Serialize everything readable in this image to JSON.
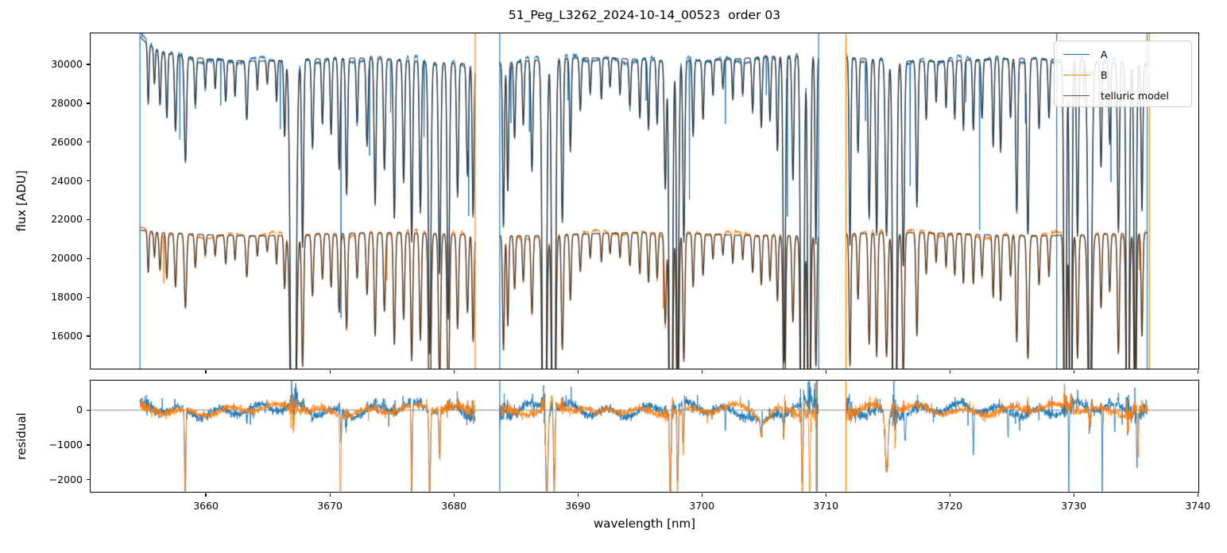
{
  "chart_data": {
    "type": "line",
    "title": "51_Peg_L3262_2024-10-14_00523  order 03",
    "xlabel": "wavelength [nm]",
    "xlim": [
      3650.7,
      3740.05
    ],
    "xticks": [
      3660,
      3670,
      3680,
      3690,
      3700,
      3710,
      3720,
      3730,
      3740
    ],
    "top_panel": {
      "ylabel": "flux [ADU]",
      "ylim": [
        14320,
        31600
      ],
      "yticks": [
        16000,
        18000,
        20000,
        22000,
        24000,
        26000,
        28000,
        30000
      ]
    },
    "bottom_panel": {
      "ylabel": "residual",
      "ylim": [
        -2350,
        850
      ],
      "yticks": [
        -2000,
        -1000,
        0
      ],
      "zero_line_value": 0
    },
    "legend": [
      {
        "label": "A",
        "color": "#1f77b4"
      },
      {
        "label": "B",
        "color": "#ff7f0e"
      },
      {
        "label": "telluric model",
        "color": "#555555"
      }
    ],
    "colors": {
      "A": "#1f77b4",
      "B": "#ff7f0e",
      "model": "rgba(38,38,38,0.8)",
      "zero_line": "#888888",
      "spine": "#000000"
    },
    "continuum": {
      "A_level": 30250,
      "B_level": 21250,
      "A_left_edge_boost": 1050,
      "B_left_edge_boost": 150
    },
    "segments_nm": [
      [
        3654.68,
        3681.72
      ],
      [
        3683.7,
        3709.42
      ],
      [
        3711.62,
        3735.95
      ]
    ],
    "vertical_lines_top": [
      [
        3654.68,
        "A"
      ],
      [
        3681.72,
        "B"
      ],
      [
        3683.7,
        "A"
      ],
      [
        3709.42,
        "A"
      ],
      [
        3711.62,
        "B"
      ],
      [
        3728.62,
        "A"
      ],
      [
        3735.92,
        "A"
      ],
      [
        3736.1,
        "B"
      ]
    ],
    "vertical_lines_bottom": [
      [
        3683.7,
        "A"
      ],
      [
        3709.22,
        "B"
      ],
      [
        3709.3,
        "A"
      ],
      [
        3711.62,
        "B"
      ]
    ],
    "absorption_lines_columns": [
      "center_nm",
      "depth_fraction",
      "sigma_nm"
    ],
    "absorption_lines": [
      [
        3655.35,
        0.1,
        0.06
      ],
      [
        3655.85,
        0.06,
        0.06
      ],
      [
        3656.3,
        0.09,
        0.07
      ],
      [
        3656.85,
        0.11,
        0.07
      ],
      [
        3657.55,
        0.13,
        0.08
      ],
      [
        3658.35,
        0.18,
        0.09
      ],
      [
        3659.15,
        0.08,
        0.07
      ],
      [
        3659.95,
        0.05,
        0.06
      ],
      [
        3660.75,
        0.05,
        0.06
      ],
      [
        3661.6,
        0.07,
        0.07
      ],
      [
        3662.35,
        0.06,
        0.06
      ],
      [
        3663.3,
        0.1,
        0.08
      ],
      [
        3664.15,
        0.05,
        0.06
      ],
      [
        3664.95,
        0.04,
        0.06
      ],
      [
        3665.7,
        0.07,
        0.06
      ],
      [
        3666.35,
        0.13,
        0.07
      ],
      [
        3667.05,
        1.22,
        0.17
      ],
      [
        3667.8,
        0.32,
        0.08
      ],
      [
        3668.6,
        0.15,
        0.08
      ],
      [
        3669.4,
        0.11,
        0.07
      ],
      [
        3670.1,
        0.13,
        0.07
      ],
      [
        3670.75,
        0.19,
        0.08
      ],
      [
        3671.35,
        0.23,
        0.08
      ],
      [
        3672.2,
        0.11,
        0.07
      ],
      [
        3673.0,
        0.15,
        0.08
      ],
      [
        3673.65,
        0.25,
        0.08
      ],
      [
        3674.4,
        0.19,
        0.08
      ],
      [
        3675.2,
        0.27,
        0.08
      ],
      [
        3675.95,
        0.21,
        0.08
      ],
      [
        3676.6,
        0.31,
        0.08
      ],
      [
        3677.3,
        0.26,
        0.08
      ],
      [
        3678.05,
        0.5,
        0.1
      ],
      [
        3678.85,
        0.36,
        0.09
      ],
      [
        3679.55,
        0.44,
        0.09
      ],
      [
        3680.3,
        0.23,
        0.08
      ],
      [
        3681.1,
        0.19,
        0.08
      ],
      [
        3681.55,
        0.26,
        0.07
      ],
      [
        3684.0,
        0.28,
        0.07
      ],
      [
        3684.35,
        0.22,
        0.07
      ],
      [
        3684.9,
        0.13,
        0.07
      ],
      [
        3685.6,
        0.11,
        0.07
      ],
      [
        3686.3,
        0.19,
        0.08
      ],
      [
        3687.3,
        1.18,
        0.13
      ],
      [
        3688.05,
        1.1,
        0.12
      ],
      [
        3688.75,
        0.28,
        0.08
      ],
      [
        3689.4,
        0.16,
        0.07
      ],
      [
        3690.2,
        0.09,
        0.07
      ],
      [
        3691.0,
        0.06,
        0.06
      ],
      [
        3691.9,
        0.07,
        0.06
      ],
      [
        3692.6,
        0.05,
        0.06
      ],
      [
        3693.4,
        0.06,
        0.06
      ],
      [
        3694.2,
        0.08,
        0.07
      ],
      [
        3695.0,
        0.1,
        0.07
      ],
      [
        3695.7,
        0.12,
        0.07
      ],
      [
        3696.4,
        0.11,
        0.07
      ],
      [
        3697.05,
        0.22,
        0.08
      ],
      [
        3697.5,
        1.12,
        0.11
      ],
      [
        3698.05,
        0.56,
        0.09
      ],
      [
        3698.55,
        0.31,
        0.08
      ],
      [
        3699.3,
        0.13,
        0.07
      ],
      [
        3700.1,
        0.1,
        0.07
      ],
      [
        3700.9,
        0.06,
        0.06
      ],
      [
        3701.7,
        0.05,
        0.06
      ],
      [
        3702.5,
        0.07,
        0.06
      ],
      [
        3703.3,
        0.06,
        0.06
      ],
      [
        3704.1,
        0.09,
        0.07
      ],
      [
        3704.8,
        0.12,
        0.07
      ],
      [
        3705.5,
        0.11,
        0.07
      ],
      [
        3706.1,
        0.16,
        0.07
      ],
      [
        3706.65,
        0.52,
        0.09
      ],
      [
        3707.35,
        0.21,
        0.08
      ],
      [
        3708.1,
        1.16,
        0.11
      ],
      [
        3708.65,
        0.82,
        0.1
      ],
      [
        3709.2,
        0.32,
        0.07
      ],
      [
        3711.95,
        0.32,
        0.07
      ],
      [
        3712.6,
        0.16,
        0.07
      ],
      [
        3713.5,
        0.27,
        0.08
      ],
      [
        3714.1,
        0.3,
        0.08
      ],
      [
        3714.9,
        0.3,
        0.1
      ],
      [
        3715.55,
        1.15,
        0.12
      ],
      [
        3716.25,
        0.35,
        0.09
      ],
      [
        3717.35,
        0.25,
        0.08
      ],
      [
        3718.1,
        0.1,
        0.07
      ],
      [
        3718.9,
        0.07,
        0.06
      ],
      [
        3719.7,
        0.08,
        0.06
      ],
      [
        3720.4,
        0.1,
        0.07
      ],
      [
        3721.1,
        0.12,
        0.07
      ],
      [
        3721.9,
        0.12,
        0.07
      ],
      [
        3722.6,
        0.1,
        0.07
      ],
      [
        3723.5,
        0.15,
        0.07
      ],
      [
        3724.1,
        0.16,
        0.07
      ],
      [
        3724.9,
        0.1,
        0.07
      ],
      [
        3725.4,
        0.26,
        0.08
      ],
      [
        3726.3,
        0.3,
        0.09
      ],
      [
        3727.2,
        0.12,
        0.07
      ],
      [
        3728.0,
        0.1,
        0.07
      ],
      [
        3729.3,
        0.8,
        0.09
      ],
      [
        3729.75,
        0.85,
        0.09
      ],
      [
        3730.3,
        0.3,
        0.08
      ],
      [
        3731.3,
        0.62,
        0.14
      ],
      [
        3732.2,
        0.18,
        0.07
      ],
      [
        3732.9,
        0.14,
        0.07
      ],
      [
        3733.6,
        0.29,
        0.08
      ],
      [
        3734.35,
        0.95,
        0.1
      ],
      [
        3734.95,
        0.55,
        0.09
      ],
      [
        3735.5,
        0.25,
        0.07
      ]
    ],
    "narrow_spikes_A_columns": [
      "center_nm",
      "drop_adu"
    ],
    "narrow_spikes_A": [
      [
        3657.9,
        4500
      ],
      [
        3661.2,
        2500
      ],
      [
        3666.0,
        3500
      ],
      [
        3670.9,
        12500
      ],
      [
        3673.2,
        5000
      ],
      [
        3674.9,
        3000
      ],
      [
        3677.6,
        4500
      ],
      [
        3681.2,
        5500
      ],
      [
        3684.6,
        3000
      ],
      [
        3686.1,
        4200
      ],
      [
        3689.2,
        2800
      ],
      [
        3695.5,
        2500
      ],
      [
        3699.0,
        7500
      ],
      [
        3701.9,
        3500
      ],
      [
        3705.2,
        2600
      ],
      [
        3706.9,
        8000
      ],
      [
        3713.2,
        3200
      ],
      [
        3716.8,
        6800
      ],
      [
        3721.3,
        2400
      ],
      [
        3722.4,
        8800
      ],
      [
        3726.1,
        3200
      ],
      [
        3730.8,
        2800
      ],
      [
        3733.0,
        5200
      ]
    ],
    "narrow_spikes_B": [
      [
        3656.6,
        2800
      ],
      [
        3674.6,
        2600
      ],
      [
        3696.9,
        3400
      ],
      [
        3715.3,
        2400
      ],
      [
        3735.3,
        2200
      ]
    ],
    "residual_spikes_columns": [
      "center_nm",
      "value_adu",
      "sigma_nm",
      "channels"
    ],
    "residual_spikes": [
      [
        3658.33,
        -2600,
        0.05,
        "AB"
      ],
      [
        3663.3,
        -350,
        0.05,
        "A"
      ],
      [
        3667.1,
        -450,
        0.06,
        "AB"
      ],
      [
        3668.6,
        -350,
        0.05,
        "A"
      ],
      [
        3670.85,
        -2600,
        0.05,
        "B"
      ],
      [
        3670.9,
        -800,
        0.04,
        "A"
      ],
      [
        3671.3,
        -500,
        0.05,
        "A"
      ],
      [
        3676.6,
        -2500,
        0.05,
        "AB"
      ],
      [
        3678.05,
        -2600,
        0.06,
        "AB"
      ],
      [
        3678.85,
        -1500,
        0.05,
        "AB"
      ],
      [
        3687.5,
        -2600,
        0.09,
        "AB"
      ],
      [
        3688.1,
        -2300,
        0.06,
        "AB"
      ],
      [
        3691.5,
        -250,
        0.4,
        "B"
      ],
      [
        3697.45,
        -2600,
        0.06,
        "AB"
      ],
      [
        3698.05,
        -2600,
        0.05,
        "AB"
      ],
      [
        3698.5,
        -1300,
        0.05,
        "AB"
      ],
      [
        3701.9,
        -700,
        0.03,
        "A"
      ],
      [
        3704.8,
        -450,
        0.06,
        "AB"
      ],
      [
        3705.0,
        -350,
        0.5,
        "AB"
      ],
      [
        3706.6,
        -700,
        0.05,
        "AB"
      ],
      [
        3708.1,
        -2600,
        0.05,
        "AB"
      ],
      [
        3708.7,
        -2600,
        0.05,
        "B"
      ],
      [
        3714.9,
        -1900,
        0.12,
        "AB"
      ],
      [
        3715.6,
        -1000,
        0.06,
        "B"
      ],
      [
        3716.4,
        -700,
        0.05,
        "A"
      ],
      [
        3721.9,
        -1300,
        0.04,
        "A"
      ],
      [
        3724.7,
        -700,
        0.03,
        "A"
      ],
      [
        3729.6,
        -2600,
        0.025,
        "A"
      ],
      [
        3731.3,
        -600,
        0.06,
        "AB"
      ],
      [
        3732.3,
        -2600,
        0.025,
        "A"
      ],
      [
        3733.3,
        -800,
        0.03,
        "A"
      ],
      [
        3735.1,
        -1600,
        0.04,
        "A"
      ],
      [
        3735.2,
        -1300,
        0.04,
        "B"
      ]
    ]
  }
}
